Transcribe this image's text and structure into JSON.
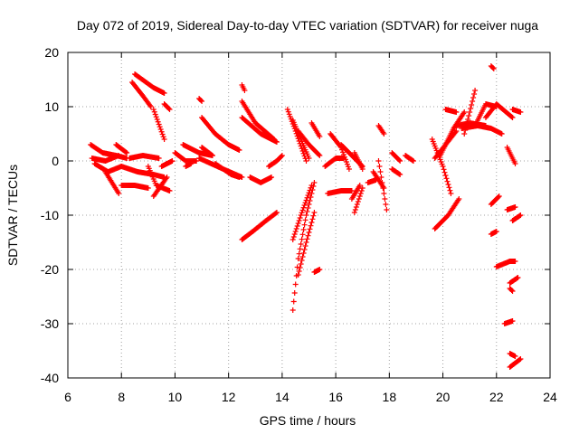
{
  "chart_data": {
    "type": "scatter",
    "title": "Day 072 of 2019, Sidereal Day-to-day VTEC variation (SDTVAR) for receiver nuga",
    "xlabel": "GPS time / hours",
    "ylabel": "SDTVAR / TECUs",
    "xlim": [
      6,
      24
    ],
    "ylim": [
      -40,
      20
    ],
    "xticks": [
      6,
      8,
      10,
      12,
      14,
      16,
      18,
      20,
      22,
      24
    ],
    "yticks": [
      -40,
      -30,
      -20,
      -10,
      0,
      10,
      20
    ],
    "grid": true,
    "marker": "+",
    "color": "#ff0000",
    "arcs": [
      {
        "x": [
          6.85,
          7.3,
          7.8,
          8.2
        ],
        "y": [
          3.0,
          1.5,
          1.0,
          0.5
        ]
      },
      {
        "x": [
          6.9,
          7.4,
          7.9
        ],
        "y": [
          0.5,
          0.0,
          1.0
        ]
      },
      {
        "x": [
          7.0,
          7.5,
          8.0
        ],
        "y": [
          -0.5,
          -2.0,
          -1.0
        ]
      },
      {
        "x": [
          7.4,
          7.9
        ],
        "y": [
          -2.0,
          -6.0
        ]
      },
      {
        "x": [
          7.8,
          8.2
        ],
        "y": [
          3.0,
          1.5
        ]
      },
      {
        "x": [
          8.0,
          8.6,
          9.2,
          9.6
        ],
        "y": [
          -1.0,
          -2.0,
          -2.5,
          -3.0
        ]
      },
      {
        "x": [
          8.0,
          8.5,
          9.0
        ],
        "y": [
          -4.5,
          -4.5,
          -5.0
        ]
      },
      {
        "x": [
          8.3,
          8.8,
          9.4
        ],
        "y": [
          0.5,
          1.0,
          0.5
        ]
      },
      {
        "x": [
          8.5,
          9.2,
          9.6
        ],
        "y": [
          16.0,
          13.5,
          12.5
        ]
      },
      {
        "x": [
          8.4,
          8.8,
          9.1
        ],
        "y": [
          14.5,
          12.0,
          10.0
        ]
      },
      {
        "x": [
          9.2,
          9.6
        ],
        "y": [
          9.5,
          4.0
        ]
      },
      {
        "x": [
          9.6,
          9.8
        ],
        "y": [
          10.5,
          9.5
        ]
      },
      {
        "x": [
          9.0,
          9.3,
          9.8
        ],
        "y": [
          -1.0,
          -4.5,
          -5.5
        ]
      },
      {
        "x": [
          9.2,
          9.7
        ],
        "y": [
          -6.5,
          -3.0
        ]
      },
      {
        "x": [
          9.5,
          9.9
        ],
        "y": [
          -1.0,
          0.0
        ]
      },
      {
        "x": [
          10.0,
          10.4,
          10.8
        ],
        "y": [
          1.5,
          0.0,
          0.0
        ]
      },
      {
        "x": [
          10.3,
          10.9,
          11.4
        ],
        "y": [
          3.0,
          1.5,
          1.0
        ]
      },
      {
        "x": [
          10.4,
          10.6
        ],
        "y": [
          -1.0,
          -0.5
        ]
      },
      {
        "x": [
          10.9,
          11.0
        ],
        "y": [
          11.5,
          11.0
        ]
      },
      {
        "x": [
          11.0,
          11.5,
          12.0,
          12.4
        ],
        "y": [
          8.0,
          5.0,
          3.0,
          2.0
        ]
      },
      {
        "x": [
          10.9,
          11.8,
          12.5
        ],
        "y": [
          0.5,
          -1.5,
          -3.0
        ]
      },
      {
        "x": [
          11.0,
          11.4
        ],
        "y": [
          2.5,
          1.0
        ]
      },
      {
        "x": [
          11.5,
          12.1,
          12.4
        ],
        "y": [
          -0.5,
          -2.5,
          -3.0
        ]
      },
      {
        "x": [
          12.5,
          12.6
        ],
        "y": [
          14.0,
          13.0
        ]
      },
      {
        "x": [
          12.5,
          13.0,
          13.7
        ],
        "y": [
          11.0,
          7.0,
          4.0
        ]
      },
      {
        "x": [
          12.5,
          13.2,
          13.8
        ],
        "y": [
          8.0,
          5.0,
          3.5
        ]
      },
      {
        "x": [
          12.5,
          12.9,
          13.4,
          13.8
        ],
        "y": [
          -14.5,
          -13.0,
          -11.0,
          -9.5
        ]
      },
      {
        "x": [
          12.8,
          13.2,
          13.6
        ],
        "y": [
          -3.0,
          -4.0,
          -3.0
        ]
      },
      {
        "x": [
          13.5,
          13.8,
          14.0
        ],
        "y": [
          -1.0,
          0.0,
          1.0
        ]
      },
      {
        "x": [
          14.2,
          14.5,
          14.9
        ],
        "y": [
          9.5,
          5.5,
          0.0
        ]
      },
      {
        "x": [
          14.4,
          14.7,
          15.0
        ],
        "y": [
          7.5,
          4.0,
          0.5
        ]
      },
      {
        "x": [
          14.6,
          15.0,
          15.4
        ],
        "y": [
          5.5,
          3.0,
          1.0
        ]
      },
      {
        "x": [
          15.1,
          15.4
        ],
        "y": [
          7.0,
          4.5
        ]
      },
      {
        "x": [
          14.4,
          14.6,
          14.9,
          15.2
        ],
        "y": [
          -27.5,
          -18.0,
          -10.0,
          -4.0
        ]
      },
      {
        "x": [
          14.4,
          14.7,
          15.1
        ],
        "y": [
          -14.5,
          -10.0,
          -4.5
        ]
      },
      {
        "x": [
          14.6,
          14.9,
          15.2
        ],
        "y": [
          -21.0,
          -15.0,
          -9.5
        ]
      },
      {
        "x": [
          15.2,
          15.4
        ],
        "y": [
          -20.5,
          -20.0
        ]
      },
      {
        "x": [
          15.6,
          16.0,
          16.3
        ],
        "y": [
          -1.0,
          0.5,
          0.5
        ]
      },
      {
        "x": [
          15.7,
          16.2,
          16.6
        ],
        "y": [
          -6.0,
          -5.5,
          -5.5
        ]
      },
      {
        "x": [
          15.8,
          16.2,
          16.5
        ],
        "y": [
          5.0,
          2.5,
          -1.5
        ]
      },
      {
        "x": [
          16.2,
          16.7,
          17.0
        ],
        "y": [
          3.0,
          0.5,
          -1.0
        ]
      },
      {
        "x": [
          16.6,
          16.9
        ],
        "y": [
          -7.0,
          -4.5
        ]
      },
      {
        "x": [
          16.7,
          17.0
        ],
        "y": [
          -9.5,
          -5.0
        ]
      },
      {
        "x": [
          16.7,
          17.0
        ],
        "y": [
          1.5,
          -1.5
        ]
      },
      {
        "x": [
          17.2,
          17.5
        ],
        "y": [
          -4.0,
          -3.5
        ]
      },
      {
        "x": [
          17.6,
          17.8
        ],
        "y": [
          6.5,
          5.0
        ]
      },
      {
        "x": [
          17.6,
          17.9
        ],
        "y": [
          0.0,
          -9.0
        ]
      },
      {
        "x": [
          17.4,
          17.8
        ],
        "y": [
          -2.0,
          -5.0
        ]
      },
      {
        "x": [
          18.1,
          18.4
        ],
        "y": [
          1.5,
          0.0
        ]
      },
      {
        "x": [
          18.1,
          18.4
        ],
        "y": [
          -1.5,
          -2.5
        ]
      },
      {
        "x": [
          18.6,
          18.9
        ],
        "y": [
          1.0,
          0.0
        ]
      },
      {
        "x": [
          19.6,
          20.0,
          20.3
        ],
        "y": [
          4.0,
          -1.0,
          -6.0
        ]
      },
      {
        "x": [
          19.7,
          20.1,
          20.5
        ],
        "y": [
          0.5,
          3.0,
          5.5
        ]
      },
      {
        "x": [
          19.7,
          20.2,
          20.6
        ],
        "y": [
          -12.5,
          -10.0,
          -7.0
        ]
      },
      {
        "x": [
          19.9,
          20.4,
          20.8
        ],
        "y": [
          1.0,
          6.0,
          9.0
        ]
      },
      {
        "x": [
          20.1,
          20.5
        ],
        "y": [
          9.5,
          9.0
        ]
      },
      {
        "x": [
          20.5,
          21.0,
          21.6
        ],
        "y": [
          6.5,
          7.0,
          6.5
        ]
      },
      {
        "x": [
          20.7,
          21.3,
          21.8,
          22.2
        ],
        "y": [
          6.0,
          6.5,
          6.0,
          5.0
        ]
      },
      {
        "x": [
          20.8,
          21.2
        ],
        "y": [
          5.0,
          13.0
        ]
      },
      {
        "x": [
          21.2,
          21.6,
          22.0
        ],
        "y": [
          6.5,
          10.5,
          10.0
        ]
      },
      {
        "x": [
          21.6,
          22.0,
          22.6
        ],
        "y": [
          8.0,
          10.5,
          8.0
        ]
      },
      {
        "x": [
          21.8,
          21.9
        ],
        "y": [
          17.5,
          17.0
        ]
      },
      {
        "x": [
          21.8,
          22.0
        ],
        "y": [
          -13.5,
          -13.0
        ]
      },
      {
        "x": [
          21.8,
          22.1
        ],
        "y": [
          -8.0,
          -6.5
        ]
      },
      {
        "x": [
          22.0,
          22.5,
          22.7
        ],
        "y": [
          -19.5,
          -18.5,
          -18.5
        ]
      },
      {
        "x": [
          22.3,
          22.6
        ],
        "y": [
          -30.0,
          -29.5
        ]
      },
      {
        "x": [
          22.5,
          22.8
        ],
        "y": [
          -22.5,
          -21.5
        ]
      },
      {
        "x": [
          22.4,
          22.7
        ],
        "y": [
          -9.0,
          -8.5
        ]
      },
      {
        "x": [
          22.5,
          22.7
        ],
        "y": [
          -35.5,
          -36.0
        ]
      },
      {
        "x": [
          22.5,
          22.9
        ],
        "y": [
          -38.0,
          -36.5
        ]
      },
      {
        "x": [
          22.6,
          22.9
        ],
        "y": [
          -11.0,
          -10.0
        ]
      },
      {
        "x": [
          22.4,
          22.7
        ],
        "y": [
          2.5,
          -0.5
        ]
      },
      {
        "x": [
          22.6,
          22.9
        ],
        "y": [
          9.5,
          9.0
        ]
      },
      {
        "x": [
          22.5,
          22.6
        ],
        "y": [
          -23.5,
          -24.0
        ]
      }
    ]
  }
}
